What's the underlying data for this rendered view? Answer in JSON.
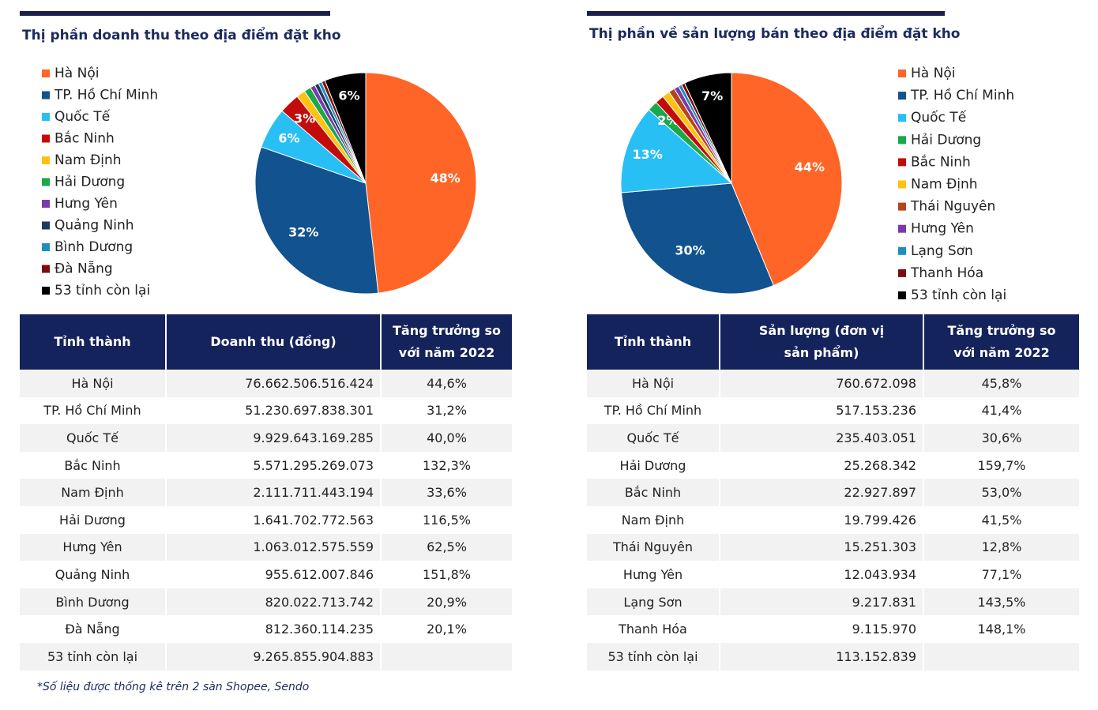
{
  "chart_data": [
    {
      "type": "pie",
      "title": "Thị phần doanh thu theo địa điểm đặt kho",
      "categories": [
        "Hà Nội",
        "TP. Hồ Chí Minh",
        "Quốc Tế",
        "Bắc Ninh",
        "Nam Định",
        "Hải Dương",
        "Hưng Yên",
        "Quảng Ninh",
        "Bình Dương",
        "Đà Nẵng",
        "53 tỉnh còn lại"
      ],
      "values": [
        48,
        32,
        6,
        3,
        1.3,
        1,
        0.7,
        0.6,
        0.5,
        0.5,
        6
      ],
      "value_labels": [
        "48%",
        "32%",
        "6%",
        "3%",
        null,
        null,
        null,
        null,
        null,
        null,
        "6%"
      ],
      "colors": [
        "#ff6527",
        "#11528f",
        "#28bff5",
        "#c40b0b",
        "#ffc20e",
        "#1aa84b",
        "#7a3aa8",
        "#1c3a63",
        "#1c8fbd",
        "#7d0c0c",
        "#000000"
      ]
    },
    {
      "type": "pie",
      "title": "Thị phần về sản lượng bán theo địa điểm đặt kho",
      "categories": [
        "Hà Nội",
        "TP. Hồ Chí Minh",
        "Quốc Tế",
        "Hải Dương",
        "Bắc Ninh",
        "Nam Định",
        "Thái Nguyên",
        "Hưng Yên",
        "Lạng Sơn",
        "Thanh Hóa",
        "53 tỉnh còn lại"
      ],
      "values": [
        44,
        30,
        13,
        1.5,
        1.3,
        1.1,
        0.9,
        0.7,
        0.5,
        0.5,
        7
      ],
      "value_labels": [
        "44%",
        "30%",
        "13%",
        "2%",
        null,
        null,
        null,
        null,
        null,
        null,
        "7%"
      ],
      "colors": [
        "#ff6527",
        "#11528f",
        "#28bff5",
        "#1aa84b",
        "#c40b0b",
        "#ffc20e",
        "#b5461c",
        "#7a3aa8",
        "#1c8fbd",
        "#7d0c0c",
        "#000000"
      ]
    }
  ],
  "tables": [
    {
      "columns": [
        "Tỉnh thành",
        "Doanh thu (đồng)",
        "Tăng trưởng so với năm 2022"
      ],
      "rows": [
        [
          "Hà Nội",
          "76.662.506.516.424",
          "44,6%"
        ],
        [
          "TP. Hồ Chí Minh",
          "51.230.697.838.301",
          "31,2%"
        ],
        [
          "Quốc Tế",
          "9.929.643.169.285",
          "40,0%"
        ],
        [
          "Bắc Ninh",
          "5.571.295.269.073",
          "132,3%"
        ],
        [
          "Nam Định",
          "2.111.711.443.194",
          "33,6%"
        ],
        [
          "Hải Dương",
          "1.641.702.772.563",
          "116,5%"
        ],
        [
          "Hưng Yên",
          "1.063.012.575.559",
          "62,5%"
        ],
        [
          "Quảng Ninh",
          "955.612.007.846",
          "151,8%"
        ],
        [
          "Bình Dương",
          "820.022.713.742",
          "20,9%"
        ],
        [
          "Đà Nẵng",
          "812.360.114.235",
          "20,1%"
        ],
        [
          "53 tỉnh còn lại",
          "9.265.855.904.883",
          null
        ]
      ]
    },
    {
      "columns": [
        "Tỉnh thành",
        "Sản lượng (đơn vị sản phẩm)",
        "Tăng trưởng so với năm 2022"
      ],
      "rows": [
        [
          "Hà Nội",
          "760.672.098",
          "45,8%"
        ],
        [
          "TP. Hồ Chí Minh",
          "517.153.236",
          "41,4%"
        ],
        [
          "Quốc Tế",
          "235.403.051",
          "30,6%"
        ],
        [
          "Hải Dương",
          "25.268.342",
          "159,7%"
        ],
        [
          "Bắc Ninh",
          "22.927.897",
          "53,0%"
        ],
        [
          "Nam Định",
          "19.799.426",
          "41,5%"
        ],
        [
          "Thái Nguyên",
          "15.251.303",
          "12,8%"
        ],
        [
          "Hưng Yên",
          "12.043.934",
          "77,1%"
        ],
        [
          "Lạng Sơn",
          "9.217.831",
          "143,5%"
        ],
        [
          "Thanh Hóa",
          "9.115.970",
          "148,1%"
        ],
        [
          "53 tỉnh còn lại",
          "113.152.839",
          null
        ]
      ]
    }
  ],
  "footnote": "*Số liệu được thống kê trên 2 sàn Shopee, Sendo"
}
